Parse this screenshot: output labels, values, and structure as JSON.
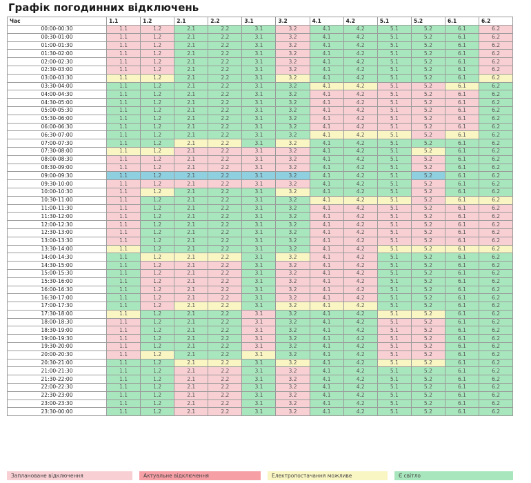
{
  "title": "Графік погодинних відключень",
  "table": {
    "time_header": "Час",
    "groups": [
      "1.1",
      "1.2",
      "2.1",
      "2.2",
      "3.1",
      "3.2",
      "4.1",
      "4.2",
      "5.1",
      "5.2",
      "6.1",
      "6.2"
    ],
    "rows": [
      {
        "time": "00:00-00:30",
        "s": "PPGGGPGGGGGP"
      },
      {
        "time": "00:30-01:00",
        "s": "PPGGGPGGGGGP"
      },
      {
        "time": "01:00-01:30",
        "s": "PPGGGPGGGGGP"
      },
      {
        "time": "01:30-02:00",
        "s": "PPGGGPGGGGGP"
      },
      {
        "time": "02:00-02:30",
        "s": "PPGGGPGGGGGP"
      },
      {
        "time": "02:30-03:00",
        "s": "PPGGGPGGGGGP"
      },
      {
        "time": "03:00-03:30",
        "s": "YYGGGYGGGGGY"
      },
      {
        "time": "03:30-04:00",
        "s": "GGGGGGYYPPYG"
      },
      {
        "time": "04:00-04:30",
        "s": "GGGGGGPPPPPG"
      },
      {
        "time": "04:30-05:00",
        "s": "GGGGGGPPPPPG"
      },
      {
        "time": "05:00-05:30",
        "s": "GGGGGGPPPPPG"
      },
      {
        "time": "05:30-06:00",
        "s": "GGGGGGPPPPPG"
      },
      {
        "time": "06:00-06:30",
        "s": "GGGGGGPPPPPG"
      },
      {
        "time": "06:30-07:00",
        "s": "GGGGGGYYYPYG"
      },
      {
        "time": "07:00-07:30",
        "s": "GGYYGYGGGGGG"
      },
      {
        "time": "07:30-08:00",
        "s": "YYPPPPGGGYGG"
      },
      {
        "time": "08:00-08:30",
        "s": "PPPPPPGGGPGG"
      },
      {
        "time": "08:30-09:00",
        "s": "PPPPPPGGGPGG"
      },
      {
        "time": "09:00-09:30",
        "s": "CCCCCCGGGCGG"
      },
      {
        "time": "09:30-10:00",
        "s": "PPPPPPGGGPGG"
      },
      {
        "time": "10:00-10:30",
        "s": "PYGGGYGGGPGG"
      },
      {
        "time": "10:30-11:00",
        "s": "PGGGGGYYYPYY"
      },
      {
        "time": "11:00-11:30",
        "s": "PGGGGGPPPPPP"
      },
      {
        "time": "11:30-12:00",
        "s": "PGGGGGPPPPPP"
      },
      {
        "time": "12:00-12:30",
        "s": "PGGGGGPPPPPP"
      },
      {
        "time": "12:30-13:00",
        "s": "PGGGGGPPPPPP"
      },
      {
        "time": "13:00-13:30",
        "s": "PGGGGGPPPPPP"
      },
      {
        "time": "13:30-14:00",
        "s": "YGGGGGPPYYYY"
      },
      {
        "time": "14:00-14:30",
        "s": "GYYYGYPPGGGG"
      },
      {
        "time": "14:30-15:00",
        "s": "GPPPGPPPGGGG"
      },
      {
        "time": "15:00-15:30",
        "s": "GPPPGPPPGGGG"
      },
      {
        "time": "15:30-16:00",
        "s": "GPPPGPPPGGGG"
      },
      {
        "time": "16:00-16:30",
        "s": "GPPPGPPPGGGG"
      },
      {
        "time": "16:30-17:00",
        "s": "GPPPGPPPGGGG"
      },
      {
        "time": "17:00-17:30",
        "s": "GPYYGYYYGGGG"
      },
      {
        "time": "17:30-18:00",
        "s": "YGGGPGGGYYGG"
      },
      {
        "time": "18:00-18:30",
        "s": "PGGGPGGGPPGG"
      },
      {
        "time": "18:30-19:00",
        "s": "PGGGPGGGPPGG"
      },
      {
        "time": "19:00-19:30",
        "s": "PGGGPGGGPPGG"
      },
      {
        "time": "19:30-20:00",
        "s": "PGGGPGGGPPGG"
      },
      {
        "time": "20:00-20:30",
        "s": "PYGGYGGGPPGG"
      },
      {
        "time": "20:30-21:00",
        "s": "GGYYGYGGYYGG"
      },
      {
        "time": "21:00-21:30",
        "s": "GGPPGPGGGGGG"
      },
      {
        "time": "21:30-22:00",
        "s": "GGPPGPGGGGGG"
      },
      {
        "time": "22:00-22:30",
        "s": "GGPPGPGGGGGG"
      },
      {
        "time": "22:30-23:00",
        "s": "GGPPGPGGGGGG"
      },
      {
        "time": "23:00-23:30",
        "s": "GGPPGPGGGGGG"
      },
      {
        "time": "23:30-00:00",
        "s": "GGPPGPGGGGGG"
      }
    ],
    "status_colors": {
      "planned_outage": "#f8cfd3",
      "actual_outage": "#f6a0a6",
      "power_possible": "#faf6c3",
      "power_on": "#a8e6bd",
      "current_slot": "#8fd0e0"
    }
  },
  "legend": {
    "planned": "Заплановане відключення",
    "actual": "Актуальне відключення",
    "possible": "Електропостачання можливе",
    "on": "Є світло"
  }
}
